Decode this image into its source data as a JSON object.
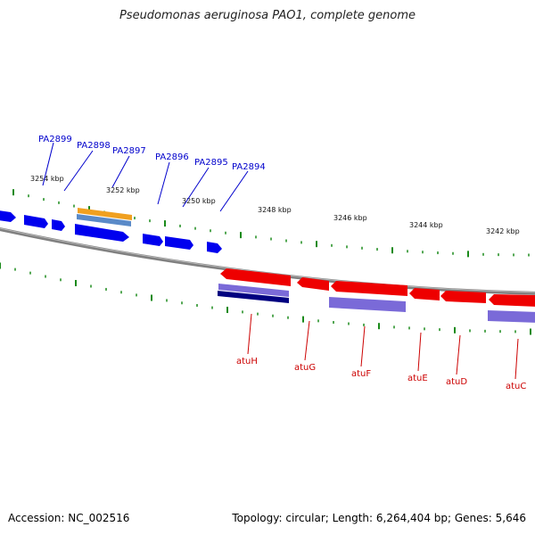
{
  "title": "Pseudomonas aeruginosa PAO1, complete genome",
  "footer": {
    "accession": "Accession: NC_002516",
    "summary": "Topology: circular; Length: 6,264,404 bp; Genes: 5,646"
  },
  "colors": {
    "forward_gene": "#0000ee",
    "reverse_gene": "#ee0000",
    "feature_orange": "#f0a020",
    "feature_steelblue": "#5a8ac8",
    "feature_lavender": "#7a6ad8",
    "feature_navy": "#000080",
    "tick": "#1a8a1a",
    "backbone": "#808080"
  },
  "kbp_labels": [
    "3254 kbp",
    "3252 kbp",
    "3250 kbp",
    "3248 kbp",
    "3246 kbp",
    "3244 kbp",
    "3242 kbp"
  ],
  "forward_gene_labels": [
    "PA2899",
    "PA2898",
    "PA2897",
    "PA2896",
    "PA2895",
    "PA2894"
  ],
  "reverse_gene_labels": [
    "atuH",
    "atuG",
    "atuF",
    "atuE",
    "atuD",
    "atuC"
  ]
}
